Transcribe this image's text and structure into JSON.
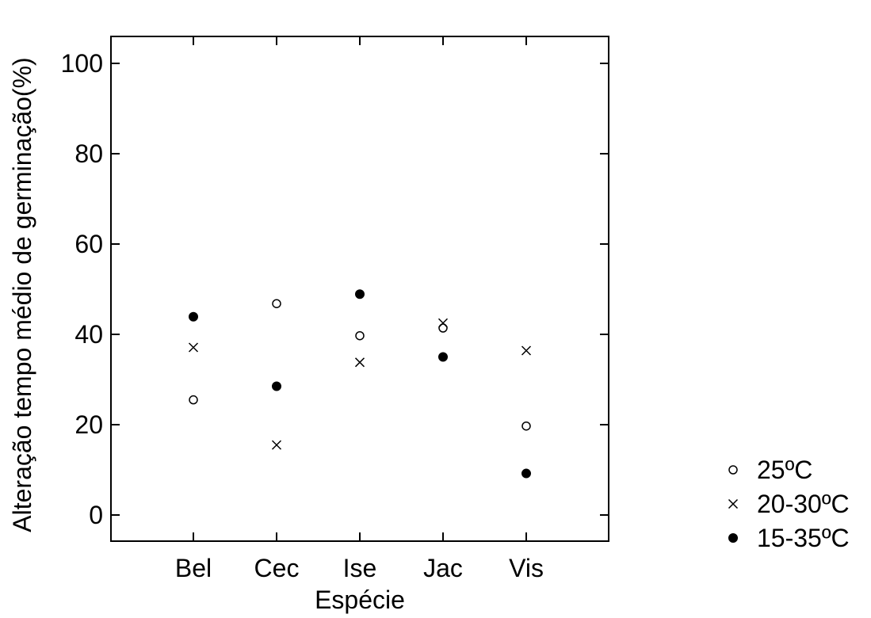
{
  "chart_data": {
    "type": "scatter",
    "title": "",
    "xlabel": "Espécie",
    "ylabel": "Alteração tempo médio de germinação(%)",
    "categories": [
      "Bel",
      "Cec",
      "Ise",
      "Jac",
      "Vis"
    ],
    "ylim": [
      -6,
      106
    ],
    "yticks": [
      0,
      20,
      40,
      60,
      80,
      100
    ],
    "grid": false,
    "legend_position": "bottom-right, outside plot",
    "series": [
      {
        "name": "25ºC",
        "marker": "open-circle",
        "values": [
          25.5,
          46.8,
          39.7,
          41.4,
          19.7
        ]
      },
      {
        "name": "20-30ºC",
        "marker": "cross",
        "values": [
          37.1,
          15.5,
          33.8,
          42.5,
          36.4
        ]
      },
      {
        "name": "15-35ºC",
        "marker": "filled-circle",
        "values": [
          43.9,
          28.5,
          48.9,
          35.0,
          9.2
        ]
      }
    ]
  }
}
